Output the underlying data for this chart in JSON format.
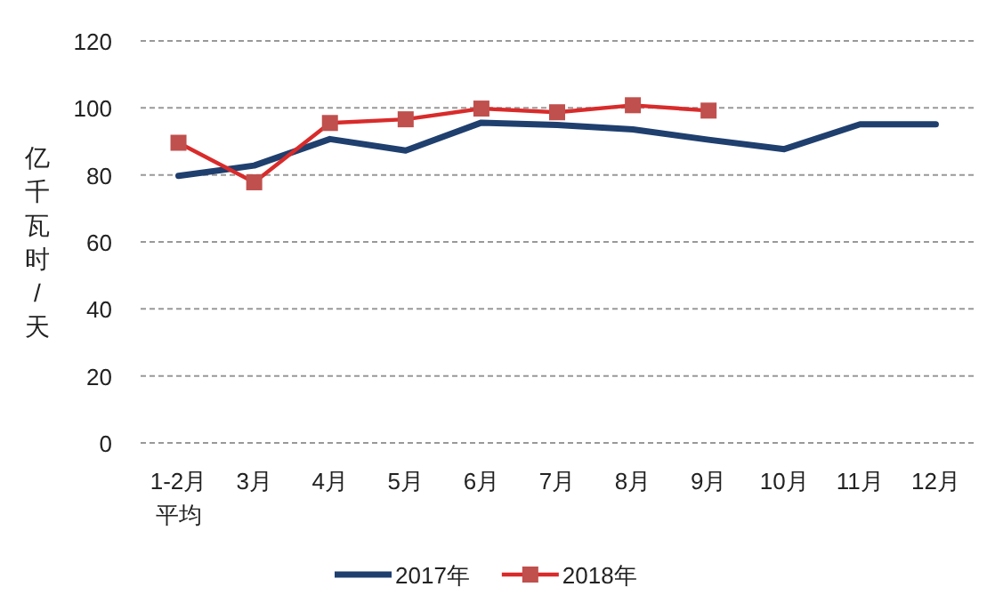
{
  "chart_data": {
    "type": "line",
    "ylabel": "亿千瓦时/天",
    "categories": [
      "1-2月平均",
      "3月",
      "4月",
      "5月",
      "6月",
      "7月",
      "8月",
      "9月",
      "10月",
      "11月",
      "12月"
    ],
    "series": [
      {
        "name": "2017年",
        "color": "#1f3f6e",
        "values": [
          79.7,
          82.8,
          90.7,
          87.3,
          95.6,
          94.9,
          93.6,
          90.5,
          87.7,
          95.1,
          95.1
        ],
        "marker": "none"
      },
      {
        "name": "2018年",
        "color": "#d92b2b",
        "values": [
          89.6,
          77.8,
          95.5,
          96.6,
          99.8,
          98.7,
          100.8,
          99.2,
          null,
          null,
          null
        ],
        "marker": "square"
      }
    ],
    "ylim": [
      0,
      120
    ],
    "yticks": [
      0,
      20,
      40,
      60,
      80,
      100,
      120
    ],
    "grid": "y",
    "legend": "bottom"
  }
}
